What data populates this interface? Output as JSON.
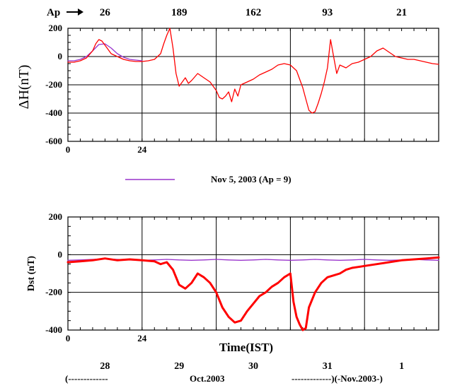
{
  "chart_data": [
    {
      "type": "line",
      "panel": "top",
      "ylabel": "ΔH(nT)",
      "ylim": [
        -600,
        200
      ],
      "yticks": [
        -600,
        -400,
        -200,
        0,
        200
      ],
      "xlim": [
        0,
        120
      ],
      "xticks": [
        0,
        24
      ],
      "ap_label": "Ap",
      "ap_values": [
        "26",
        "189",
        "162",
        "93",
        "21"
      ],
      "series": [
        {
          "name": "",
          "color": "#ff0000",
          "x": [
            0,
            2,
            4,
            6,
            8,
            9,
            10,
            11,
            12,
            13,
            14,
            16,
            18,
            20,
            22,
            24,
            26,
            28,
            30,
            31,
            32,
            33,
            34,
            35,
            36,
            37,
            38,
            39,
            40,
            42,
            44,
            46,
            48,
            49,
            50,
            51,
            52,
            53,
            54,
            55,
            56,
            58,
            60,
            62,
            64,
            66,
            68,
            70,
            72,
            74,
            76,
            77,
            78,
            79,
            80,
            81,
            82,
            83,
            84,
            85,
            86,
            87,
            88,
            90,
            92,
            94,
            96,
            98,
            100,
            102,
            104,
            106,
            108,
            110,
            112,
            114,
            116,
            118,
            120
          ],
          "y": [
            -40,
            -40,
            -30,
            -10,
            40,
            90,
            120,
            110,
            80,
            50,
            20,
            0,
            -20,
            -30,
            -35,
            -35,
            -30,
            -20,
            20,
            90,
            150,
            200,
            60,
            -120,
            -210,
            -180,
            -150,
            -190,
            -170,
            -120,
            -150,
            -180,
            -240,
            -290,
            -300,
            -280,
            -250,
            -320,
            -230,
            -280,
            -200,
            -180,
            -160,
            -130,
            -110,
            -90,
            -60,
            -50,
            -60,
            -100,
            -220,
            -300,
            -380,
            -400,
            -390,
            -330,
            -260,
            -180,
            -80,
            120,
            0,
            -120,
            -60,
            -80,
            -50,
            -40,
            -20,
            0,
            40,
            60,
            30,
            0,
            -10,
            -20,
            -20,
            -30,
            -40,
            -50,
            -55
          ]
        },
        {
          "name": "Nov 5, 2003 (Ap = 9)",
          "color": "#9933cc",
          "x": [
            0,
            2,
            4,
            6,
            8,
            10,
            12,
            14,
            16,
            18,
            20,
            22,
            24
          ],
          "y": [
            -30,
            -30,
            -20,
            0,
            40,
            85,
            90,
            60,
            20,
            -5,
            -20,
            -25,
            -30
          ]
        }
      ]
    },
    {
      "type": "line",
      "panel": "bottom",
      "ylabel": "Dst (nT)",
      "xlabel": "Time(IST)",
      "ylim": [
        -400,
        200
      ],
      "yticks": [
        -400,
        -200,
        0,
        200
      ],
      "xlim": [
        0,
        120
      ],
      "xticks": [
        0,
        24
      ],
      "day_labels": [
        "28",
        "29",
        "30",
        "31",
        "1"
      ],
      "date_range_text": [
        "(-------------",
        "Oct.2003",
        "-------------)(-Nov.2003-)"
      ],
      "series": [
        {
          "name": "Dst",
          "color": "#ff0000",
          "x": [
            0,
            4,
            8,
            12,
            16,
            20,
            24,
            28,
            30,
            32,
            34,
            36,
            38,
            40,
            42,
            44,
            46,
            48,
            50,
            52,
            54,
            56,
            58,
            60,
            62,
            64,
            66,
            68,
            70,
            72,
            73,
            74,
            75,
            76,
            77,
            78,
            80,
            82,
            84,
            86,
            88,
            90,
            92,
            94,
            96,
            100,
            104,
            108,
            112,
            116,
            120
          ],
          "y": [
            -40,
            -35,
            -30,
            -20,
            -30,
            -25,
            -30,
            -35,
            -50,
            -40,
            -80,
            -160,
            -180,
            -150,
            -100,
            -120,
            -150,
            -200,
            -280,
            -330,
            -360,
            -350,
            -300,
            -260,
            -220,
            -200,
            -170,
            -150,
            -120,
            -100,
            -250,
            -330,
            -370,
            -400,
            -390,
            -280,
            -200,
            -150,
            -120,
            -110,
            -100,
            -80,
            -70,
            -65,
            -60,
            -50,
            -40,
            -30,
            -25,
            -20,
            -15
          ]
        },
        {
          "name": "Nov 5, 2003 (Ap = 9)",
          "color": "#9933cc",
          "x": [
            0,
            4,
            8,
            12,
            16,
            20,
            24,
            28,
            32,
            36,
            40,
            44,
            48,
            52,
            56,
            60,
            64,
            68,
            72,
            76,
            80,
            84,
            88,
            92,
            96,
            100,
            104,
            108,
            112,
            116,
            120
          ],
          "y": [
            -30,
            -28,
            -25,
            -22,
            -25,
            -28,
            -30,
            -28,
            -25,
            -28,
            -30,
            -28,
            -25,
            -28,
            -30,
            -28,
            -25,
            -28,
            -30,
            -28,
            -25,
            -28,
            -30,
            -28,
            -25,
            -28,
            -30,
            -28,
            -25,
            -28,
            -30
          ]
        }
      ]
    }
  ]
}
